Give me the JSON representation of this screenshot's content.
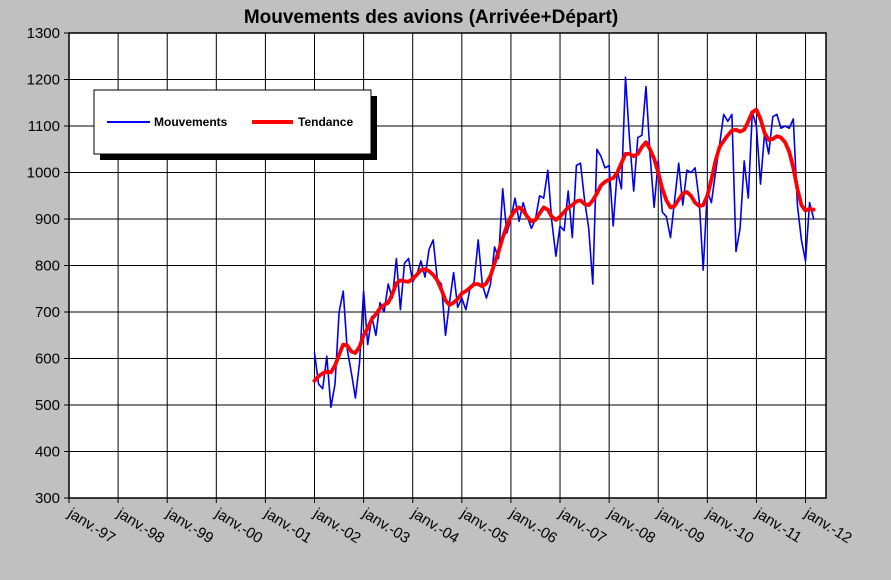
{
  "chart_data": {
    "type": "line",
    "title": "Mouvements des avions (Arrivée+Départ)",
    "xlabel": "",
    "ylabel": "",
    "ylim": [
      300,
      1300
    ],
    "yticks": [
      300,
      400,
      500,
      600,
      700,
      800,
      900,
      1000,
      1100,
      1200,
      1300
    ],
    "xlim": [
      "1997-01",
      "2012-06"
    ],
    "x_tick_labels": [
      "janv.-97",
      "janv.-98",
      "janv.-99",
      "janv.-00",
      "janv.-01",
      "janv.-02",
      "janv.-03",
      "janv.-04",
      "janv.-05",
      "janv.-06",
      "janv.-07",
      "janv.-08",
      "janv.-09",
      "janv.-10",
      "janv.-11",
      "janv.-12"
    ],
    "x_tick_dates": [
      "1997-01",
      "1998-01",
      "1999-01",
      "2000-01",
      "2001-01",
      "2002-01",
      "2003-01",
      "2004-01",
      "2005-01",
      "2006-01",
      "2007-01",
      "2008-01",
      "2009-01",
      "2010-01",
      "2011-01",
      "2012-01"
    ],
    "grid": true,
    "legend_position": "top-left",
    "series": [
      {
        "name": "Mouvements",
        "color": "#0000ee",
        "points": [
          [
            "2002-01",
            612
          ],
          [
            "2002-02",
            545
          ],
          [
            "2002-03",
            535
          ],
          [
            "2002-04",
            605
          ],
          [
            "2002-05",
            495
          ],
          [
            "2002-06",
            545
          ],
          [
            "2002-07",
            700
          ],
          [
            "2002-08",
            745
          ],
          [
            "2002-09",
            620
          ],
          [
            "2002-10",
            570
          ],
          [
            "2002-11",
            515
          ],
          [
            "2002-12",
            590
          ],
          [
            "2003-01",
            745
          ],
          [
            "2003-02",
            630
          ],
          [
            "2003-03",
            690
          ],
          [
            "2003-04",
            650
          ],
          [
            "2003-05",
            720
          ],
          [
            "2003-06",
            700
          ],
          [
            "2003-07",
            760
          ],
          [
            "2003-08",
            730
          ],
          [
            "2003-09",
            815
          ],
          [
            "2003-10",
            705
          ],
          [
            "2003-11",
            805
          ],
          [
            "2003-12",
            815
          ],
          [
            "2004-01",
            765
          ],
          [
            "2004-02",
            780
          ],
          [
            "2004-03",
            810
          ],
          [
            "2004-04",
            775
          ],
          [
            "2004-05",
            835
          ],
          [
            "2004-06",
            855
          ],
          [
            "2004-07",
            770
          ],
          [
            "2004-08",
            760
          ],
          [
            "2004-09",
            650
          ],
          [
            "2004-10",
            720
          ],
          [
            "2004-11",
            785
          ],
          [
            "2004-12",
            710
          ],
          [
            "2005-01",
            730
          ],
          [
            "2005-02",
            705
          ],
          [
            "2005-03",
            750
          ],
          [
            "2005-04",
            765
          ],
          [
            "2005-05",
            855
          ],
          [
            "2005-06",
            760
          ],
          [
            "2005-07",
            730
          ],
          [
            "2005-08",
            760
          ],
          [
            "2005-09",
            840
          ],
          [
            "2005-10",
            815
          ],
          [
            "2005-11",
            965
          ],
          [
            "2005-12",
            870
          ],
          [
            "2006-01",
            900
          ],
          [
            "2006-02",
            945
          ],
          [
            "2006-03",
            895
          ],
          [
            "2006-04",
            935
          ],
          [
            "2006-05",
            905
          ],
          [
            "2006-06",
            880
          ],
          [
            "2006-07",
            900
          ],
          [
            "2006-08",
            950
          ],
          [
            "2006-09",
            945
          ],
          [
            "2006-10",
            1005
          ],
          [
            "2006-11",
            895
          ],
          [
            "2006-12",
            820
          ],
          [
            "2007-01",
            885
          ],
          [
            "2007-02",
            875
          ],
          [
            "2007-03",
            960
          ],
          [
            "2007-04",
            860
          ],
          [
            "2007-05",
            1015
          ],
          [
            "2007-06",
            1020
          ],
          [
            "2007-07",
            940
          ],
          [
            "2007-08",
            880
          ],
          [
            "2007-09",
            760
          ],
          [
            "2007-10",
            1050
          ],
          [
            "2007-11",
            1035
          ],
          [
            "2007-12",
            1010
          ],
          [
            "2008-01",
            1015
          ],
          [
            "2008-02",
            885
          ],
          [
            "2008-03",
            1005
          ],
          [
            "2008-04",
            965
          ],
          [
            "2008-05",
            1205
          ],
          [
            "2008-06",
            1070
          ],
          [
            "2008-07",
            960
          ],
          [
            "2008-08",
            1075
          ],
          [
            "2008-09",
            1080
          ],
          [
            "2008-10",
            1185
          ],
          [
            "2008-11",
            1040
          ],
          [
            "2008-12",
            925
          ],
          [
            "2009-01",
            1025
          ],
          [
            "2009-02",
            915
          ],
          [
            "2009-03",
            905
          ],
          [
            "2009-04",
            860
          ],
          [
            "2009-05",
            940
          ],
          [
            "2009-06",
            1020
          ],
          [
            "2009-07",
            930
          ],
          [
            "2009-08",
            1005
          ],
          [
            "2009-09",
            1000
          ],
          [
            "2009-10",
            1010
          ],
          [
            "2009-11",
            940
          ],
          [
            "2009-12",
            790
          ],
          [
            "2010-01",
            960
          ],
          [
            "2010-02",
            935
          ],
          [
            "2010-03",
            1000
          ],
          [
            "2010-04",
            1060
          ],
          [
            "2010-05",
            1125
          ],
          [
            "2010-06",
            1110
          ],
          [
            "2010-07",
            1125
          ],
          [
            "2010-08",
            830
          ],
          [
            "2010-09",
            880
          ],
          [
            "2010-10",
            1025
          ],
          [
            "2010-11",
            945
          ],
          [
            "2010-12",
            1130
          ],
          [
            "2011-01",
            1100
          ],
          [
            "2011-02",
            975
          ],
          [
            "2011-03",
            1085
          ],
          [
            "2011-04",
            1040
          ],
          [
            "2011-05",
            1120
          ],
          [
            "2011-06",
            1125
          ],
          [
            "2011-07",
            1095
          ],
          [
            "2011-08",
            1100
          ],
          [
            "2011-09",
            1095
          ],
          [
            "2011-10",
            1115
          ],
          [
            "2011-11",
            930
          ],
          [
            "2011-12",
            855
          ],
          [
            "2012-01",
            810
          ],
          [
            "2012-02",
            935
          ],
          [
            "2012-03",
            900
          ]
        ]
      },
      {
        "name": "Tendance",
        "color": "#ff0000",
        "points": [
          [
            "2002-01",
            552
          ],
          [
            "2002-02",
            562
          ],
          [
            "2002-03",
            568
          ],
          [
            "2002-04",
            572
          ],
          [
            "2002-05",
            570
          ],
          [
            "2002-06",
            585
          ],
          [
            "2002-07",
            608
          ],
          [
            "2002-08",
            630
          ],
          [
            "2002-09",
            628
          ],
          [
            "2002-10",
            615
          ],
          [
            "2002-11",
            612
          ],
          [
            "2002-12",
            625
          ],
          [
            "2003-01",
            650
          ],
          [
            "2003-02",
            665
          ],
          [
            "2003-03",
            685
          ],
          [
            "2003-04",
            695
          ],
          [
            "2003-05",
            708
          ],
          [
            "2003-06",
            715
          ],
          [
            "2003-07",
            720
          ],
          [
            "2003-08",
            738
          ],
          [
            "2003-09",
            762
          ],
          [
            "2003-10",
            768
          ],
          [
            "2003-11",
            766
          ],
          [
            "2003-12",
            765
          ],
          [
            "2004-01",
            772
          ],
          [
            "2004-02",
            780
          ],
          [
            "2004-03",
            790
          ],
          [
            "2004-04",
            792
          ],
          [
            "2004-05",
            788
          ],
          [
            "2004-06",
            780
          ],
          [
            "2004-07",
            768
          ],
          [
            "2004-08",
            748
          ],
          [
            "2004-09",
            725
          ],
          [
            "2004-10",
            715
          ],
          [
            "2004-11",
            720
          ],
          [
            "2004-12",
            728
          ],
          [
            "2005-01",
            740
          ],
          [
            "2005-02",
            745
          ],
          [
            "2005-03",
            752
          ],
          [
            "2005-04",
            760
          ],
          [
            "2005-05",
            760
          ],
          [
            "2005-06",
            755
          ],
          [
            "2005-07",
            762
          ],
          [
            "2005-08",
            778
          ],
          [
            "2005-09",
            805
          ],
          [
            "2005-10",
            830
          ],
          [
            "2005-11",
            860
          ],
          [
            "2005-12",
            885
          ],
          [
            "2006-01",
            905
          ],
          [
            "2006-02",
            918
          ],
          [
            "2006-03",
            925
          ],
          [
            "2006-04",
            918
          ],
          [
            "2006-05",
            905
          ],
          [
            "2006-06",
            895
          ],
          [
            "2006-07",
            898
          ],
          [
            "2006-08",
            912
          ],
          [
            "2006-09",
            925
          ],
          [
            "2006-10",
            920
          ],
          [
            "2006-11",
            905
          ],
          [
            "2006-12",
            898
          ],
          [
            "2007-01",
            905
          ],
          [
            "2007-02",
            915
          ],
          [
            "2007-03",
            925
          ],
          [
            "2007-04",
            930
          ],
          [
            "2007-05",
            938
          ],
          [
            "2007-06",
            940
          ],
          [
            "2007-07",
            932
          ],
          [
            "2007-08",
            930
          ],
          [
            "2007-09",
            940
          ],
          [
            "2007-10",
            955
          ],
          [
            "2007-11",
            972
          ],
          [
            "2007-12",
            980
          ],
          [
            "2008-01",
            985
          ],
          [
            "2008-02",
            988
          ],
          [
            "2008-03",
            1000
          ],
          [
            "2008-04",
            1020
          ],
          [
            "2008-05",
            1040
          ],
          [
            "2008-06",
            1040
          ],
          [
            "2008-07",
            1035
          ],
          [
            "2008-08",
            1040
          ],
          [
            "2008-09",
            1055
          ],
          [
            "2008-10",
            1065
          ],
          [
            "2008-11",
            1050
          ],
          [
            "2008-12",
            1030
          ],
          [
            "2009-01",
            1000
          ],
          [
            "2009-02",
            965
          ],
          [
            "2009-03",
            940
          ],
          [
            "2009-04",
            925
          ],
          [
            "2009-05",
            928
          ],
          [
            "2009-06",
            942
          ],
          [
            "2009-07",
            955
          ],
          [
            "2009-08",
            958
          ],
          [
            "2009-09",
            950
          ],
          [
            "2009-10",
            935
          ],
          [
            "2009-11",
            928
          ],
          [
            "2009-12",
            930
          ],
          [
            "2010-01",
            950
          ],
          [
            "2010-02",
            985
          ],
          [
            "2010-03",
            1025
          ],
          [
            "2010-04",
            1055
          ],
          [
            "2010-05",
            1068
          ],
          [
            "2010-06",
            1080
          ],
          [
            "2010-07",
            1090
          ],
          [
            "2010-08",
            1092
          ],
          [
            "2010-09",
            1088
          ],
          [
            "2010-10",
            1092
          ],
          [
            "2010-11",
            1110
          ],
          [
            "2010-12",
            1130
          ],
          [
            "2011-01",
            1135
          ],
          [
            "2011-02",
            1115
          ],
          [
            "2011-03",
            1085
          ],
          [
            "2011-04",
            1070
          ],
          [
            "2011-05",
            1072
          ],
          [
            "2011-06",
            1078
          ],
          [
            "2011-07",
            1075
          ],
          [
            "2011-08",
            1065
          ],
          [
            "2011-09",
            1045
          ],
          [
            "2011-10",
            1010
          ],
          [
            "2011-11",
            965
          ],
          [
            "2011-12",
            930
          ],
          [
            "2012-01",
            918
          ],
          [
            "2012-02",
            922
          ],
          [
            "2012-03",
            920
          ]
        ]
      }
    ]
  }
}
